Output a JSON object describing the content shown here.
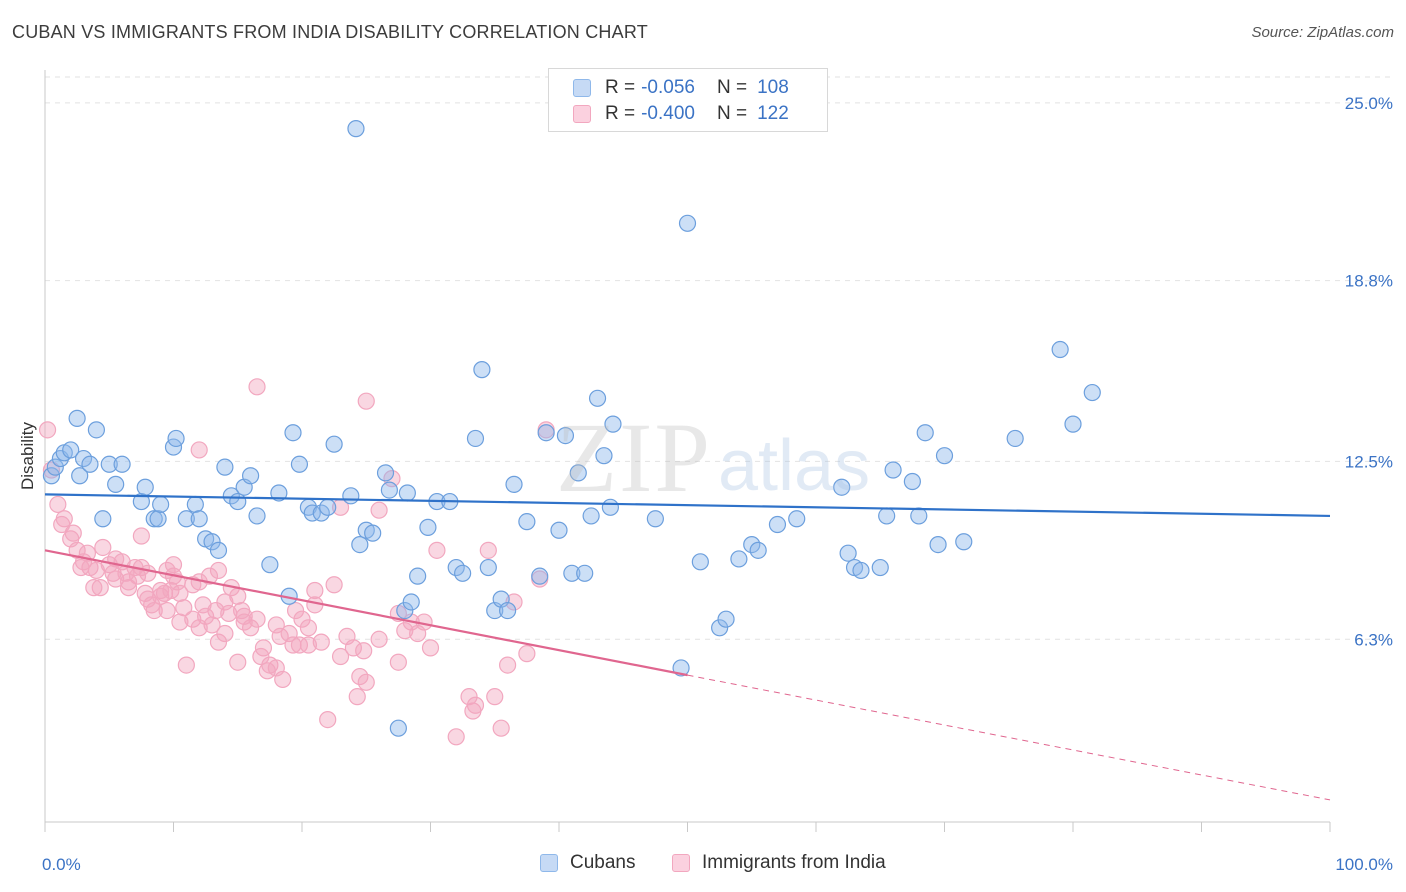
{
  "title": "CUBAN VS IMMIGRANTS FROM INDIA DISABILITY CORRELATION CHART",
  "source": "Source: ZipAtlas.com",
  "watermark": {
    "zip": "ZIP",
    "atlas": "atlas"
  },
  "legend": {
    "rows": [
      {
        "r_label": "R =",
        "r_value": "-0.056",
        "n_label": "N =",
        "n_value": "108",
        "color": "#8fb8ea"
      },
      {
        "r_label": "R =",
        "r_value": "-0.400",
        "n_label": "N =",
        "n_value": "122",
        "color": "#f2a7bf"
      }
    ]
  },
  "bottom_legend": {
    "cubans": "Cubans",
    "india": "Immigrants from India"
  },
  "colors": {
    "blue": "#8fb8ea",
    "blue_line": "#2f72c9",
    "pink": "#f2a7bf",
    "pink_line": "#e0668f",
    "tick": "#3b73c5"
  },
  "chart_data": {
    "type": "scatter",
    "title": "CUBAN VS IMMIGRANTS FROM INDIA DISABILITY CORRELATION CHART",
    "xlabel": "",
    "ylabel": "Disability",
    "xlim": [
      0,
      100
    ],
    "ylim": [
      0,
      25.9
    ],
    "x_tick_labels": [
      "0.0%",
      "100.0%"
    ],
    "y_ticks": [
      6.3,
      12.5,
      18.8,
      25.0
    ],
    "y_tick_labels": [
      "6.3%",
      "12.5%",
      "18.8%",
      "25.0%"
    ],
    "grid": "horizontal dashed",
    "legend_position": "top-center",
    "series": [
      {
        "name": "Cubans",
        "color": "#8fb8ea",
        "trend": {
          "x": [
            0,
            100
          ],
          "y": [
            11.35,
            10.6
          ]
        },
        "points": [
          [
            0.5,
            12.0
          ],
          [
            0.8,
            12.3
          ],
          [
            1.2,
            12.6
          ],
          [
            1.5,
            12.8
          ],
          [
            2.0,
            12.9
          ],
          [
            2.5,
            14.0
          ],
          [
            2.7,
            12.0
          ],
          [
            3.0,
            12.6
          ],
          [
            3.5,
            12.4
          ],
          [
            4.0,
            13.6
          ],
          [
            4.5,
            10.5
          ],
          [
            5.0,
            12.4
          ],
          [
            5.5,
            11.7
          ],
          [
            6.0,
            12.4
          ],
          [
            7.5,
            11.1
          ],
          [
            7.8,
            11.6
          ],
          [
            8.5,
            10.5
          ],
          [
            8.8,
            10.5
          ],
          [
            9.0,
            11.0
          ],
          [
            10.0,
            13.0
          ],
          [
            10.2,
            13.3
          ],
          [
            11.0,
            10.5
          ],
          [
            11.7,
            11.0
          ],
          [
            12.0,
            10.5
          ],
          [
            12.5,
            9.8
          ],
          [
            13.0,
            9.7
          ],
          [
            13.5,
            9.4
          ],
          [
            14.0,
            12.3
          ],
          [
            14.5,
            11.3
          ],
          [
            15.0,
            11.1
          ],
          [
            15.5,
            11.6
          ],
          [
            16.0,
            12.0
          ],
          [
            16.5,
            10.6
          ],
          [
            17.5,
            8.9
          ],
          [
            18.2,
            11.4
          ],
          [
            19.0,
            7.8
          ],
          [
            19.3,
            13.5
          ],
          [
            19.8,
            12.4
          ],
          [
            20.5,
            10.9
          ],
          [
            20.8,
            10.7
          ],
          [
            21.5,
            10.7
          ],
          [
            22.0,
            10.9
          ],
          [
            22.5,
            13.1
          ],
          [
            23.8,
            11.3
          ],
          [
            24.2,
            24.1
          ],
          [
            24.5,
            9.6
          ],
          [
            25.0,
            10.1
          ],
          [
            25.5,
            10.0
          ],
          [
            26.5,
            12.1
          ],
          [
            26.8,
            11.5
          ],
          [
            27.5,
            3.2
          ],
          [
            28.0,
            7.3
          ],
          [
            28.2,
            11.4
          ],
          [
            28.5,
            7.6
          ],
          [
            29.0,
            8.5
          ],
          [
            29.8,
            10.2
          ],
          [
            30.5,
            11.1
          ],
          [
            31.5,
            11.1
          ],
          [
            32.0,
            8.8
          ],
          [
            32.5,
            8.6
          ],
          [
            33.5,
            13.3
          ],
          [
            34.0,
            15.7
          ],
          [
            34.5,
            8.8
          ],
          [
            35.0,
            7.3
          ],
          [
            35.5,
            7.7
          ],
          [
            36.0,
            7.3
          ],
          [
            36.5,
            11.7
          ],
          [
            37.5,
            10.4
          ],
          [
            38.5,
            8.5
          ],
          [
            39.0,
            13.5
          ],
          [
            40.0,
            10.1
          ],
          [
            40.5,
            13.4
          ],
          [
            41.0,
            8.6
          ],
          [
            41.5,
            12.1
          ],
          [
            42.0,
            8.6
          ],
          [
            42.5,
            10.6
          ],
          [
            43.0,
            14.7
          ],
          [
            43.5,
            12.7
          ],
          [
            44.0,
            10.9
          ],
          [
            44.2,
            13.8
          ],
          [
            47.5,
            10.5
          ],
          [
            50.0,
            20.8
          ],
          [
            51.0,
            9.0
          ],
          [
            52.5,
            6.7
          ],
          [
            53.0,
            7.0
          ],
          [
            54.0,
            9.1
          ],
          [
            55.0,
            9.6
          ],
          [
            55.5,
            9.4
          ],
          [
            57.0,
            10.3
          ],
          [
            58.5,
            10.5
          ],
          [
            62.0,
            11.6
          ],
          [
            62.5,
            9.3
          ],
          [
            63.0,
            8.8
          ],
          [
            63.5,
            8.7
          ],
          [
            65.0,
            8.8
          ],
          [
            65.5,
            10.6
          ],
          [
            66.0,
            12.2
          ],
          [
            67.5,
            11.8
          ],
          [
            68.0,
            10.6
          ],
          [
            68.5,
            13.5
          ],
          [
            69.5,
            9.6
          ],
          [
            70.0,
            12.7
          ],
          [
            71.5,
            9.7
          ],
          [
            75.5,
            13.3
          ],
          [
            79.0,
            16.4
          ],
          [
            80.0,
            13.8
          ],
          [
            81.5,
            14.9
          ],
          [
            49.5,
            5.3
          ]
        ]
      },
      {
        "name": "Immigrants from India",
        "color": "#f2a7bf",
        "trend": {
          "x": [
            0,
            100
          ],
          "y": [
            9.4,
            0.7
          ]
        },
        "trend_solid_until": 50,
        "points": [
          [
            0.2,
            13.6
          ],
          [
            0.5,
            12.2
          ],
          [
            1.0,
            11.0
          ],
          [
            1.3,
            10.3
          ],
          [
            1.5,
            10.5
          ],
          [
            2.0,
            9.8
          ],
          [
            2.2,
            10.0
          ],
          [
            2.5,
            9.4
          ],
          [
            3.0,
            9.0
          ],
          [
            3.3,
            9.3
          ],
          [
            3.5,
            8.8
          ],
          [
            4.0,
            8.7
          ],
          [
            4.3,
            8.1
          ],
          [
            4.5,
            9.5
          ],
          [
            5.0,
            8.9
          ],
          [
            5.3,
            8.6
          ],
          [
            5.5,
            8.4
          ],
          [
            6.0,
            9.0
          ],
          [
            6.3,
            8.6
          ],
          [
            6.5,
            8.1
          ],
          [
            7.0,
            8.8
          ],
          [
            7.2,
            8.5
          ],
          [
            7.5,
            9.9
          ],
          [
            7.8,
            7.9
          ],
          [
            8.0,
            8.6
          ],
          [
            8.3,
            7.5
          ],
          [
            8.5,
            7.3
          ],
          [
            9.0,
            8.0
          ],
          [
            9.3,
            7.9
          ],
          [
            9.5,
            7.3
          ],
          [
            10.0,
            8.5
          ],
          [
            10.3,
            8.3
          ],
          [
            10.5,
            7.9
          ],
          [
            10.8,
            7.4
          ],
          [
            11.0,
            5.4
          ],
          [
            11.5,
            7.0
          ],
          [
            12.0,
            8.3
          ],
          [
            12.3,
            7.5
          ],
          [
            12.5,
            7.1
          ],
          [
            13.0,
            6.8
          ],
          [
            13.3,
            7.3
          ],
          [
            13.5,
            6.2
          ],
          [
            14.0,
            7.6
          ],
          [
            14.3,
            7.2
          ],
          [
            14.5,
            8.1
          ],
          [
            15.0,
            7.8
          ],
          [
            15.3,
            7.3
          ],
          [
            15.5,
            7.1
          ],
          [
            16.0,
            6.7
          ],
          [
            16.5,
            7.0
          ],
          [
            17.0,
            6.0
          ],
          [
            17.3,
            5.2
          ],
          [
            17.5,
            5.4
          ],
          [
            18.0,
            6.8
          ],
          [
            18.3,
            6.4
          ],
          [
            18.5,
            4.9
          ],
          [
            19.0,
            6.5
          ],
          [
            19.3,
            6.1
          ],
          [
            19.5,
            7.3
          ],
          [
            20.0,
            7.0
          ],
          [
            20.5,
            6.1
          ],
          [
            21.0,
            7.5
          ],
          [
            21.5,
            6.2
          ],
          [
            22.0,
            3.5
          ],
          [
            22.5,
            8.2
          ],
          [
            23.0,
            10.9
          ],
          [
            23.5,
            6.4
          ],
          [
            24.0,
            6.0
          ],
          [
            24.3,
            4.3
          ],
          [
            24.5,
            5.0
          ],
          [
            25.0,
            4.8
          ],
          [
            26.0,
            10.8
          ],
          [
            27.0,
            11.9
          ],
          [
            27.5,
            7.2
          ],
          [
            28.0,
            6.6
          ],
          [
            28.5,
            6.9
          ],
          [
            29.0,
            6.5
          ],
          [
            29.5,
            6.9
          ],
          [
            30.0,
            6.0
          ],
          [
            30.5,
            9.4
          ],
          [
            32.0,
            2.9
          ],
          [
            33.0,
            4.3
          ],
          [
            33.3,
            3.8
          ],
          [
            33.5,
            4.0
          ],
          [
            34.5,
            9.4
          ],
          [
            35.0,
            4.3
          ],
          [
            35.5,
            3.2
          ],
          [
            36.0,
            5.4
          ],
          [
            36.5,
            7.6
          ],
          [
            37.5,
            5.8
          ],
          [
            38.5,
            8.4
          ],
          [
            39.0,
            13.6
          ],
          [
            12.0,
            12.9
          ],
          [
            16.5,
            15.1
          ],
          [
            25.0,
            14.6
          ],
          [
            9.5,
            8.7
          ],
          [
            10.0,
            8.9
          ],
          [
            5.5,
            9.1
          ],
          [
            6.5,
            8.3
          ],
          [
            7.5,
            8.8
          ],
          [
            2.8,
            8.8
          ],
          [
            3.8,
            8.1
          ],
          [
            11.5,
            8.2
          ],
          [
            12.8,
            8.5
          ],
          [
            14.0,
            6.5
          ],
          [
            15.5,
            6.9
          ],
          [
            16.8,
            5.7
          ],
          [
            19.8,
            6.1
          ],
          [
            21.0,
            8.0
          ],
          [
            13.5,
            8.7
          ],
          [
            9.0,
            7.8
          ],
          [
            8.0,
            7.7
          ],
          [
            10.5,
            6.9
          ],
          [
            12.0,
            6.7
          ],
          [
            15.0,
            5.5
          ],
          [
            18.0,
            5.3
          ],
          [
            20.5,
            6.7
          ],
          [
            23.0,
            5.7
          ],
          [
            24.8,
            5.9
          ],
          [
            26.0,
            6.3
          ],
          [
            27.5,
            5.5
          ],
          [
            9.8,
            8.0
          ]
        ]
      }
    ]
  }
}
